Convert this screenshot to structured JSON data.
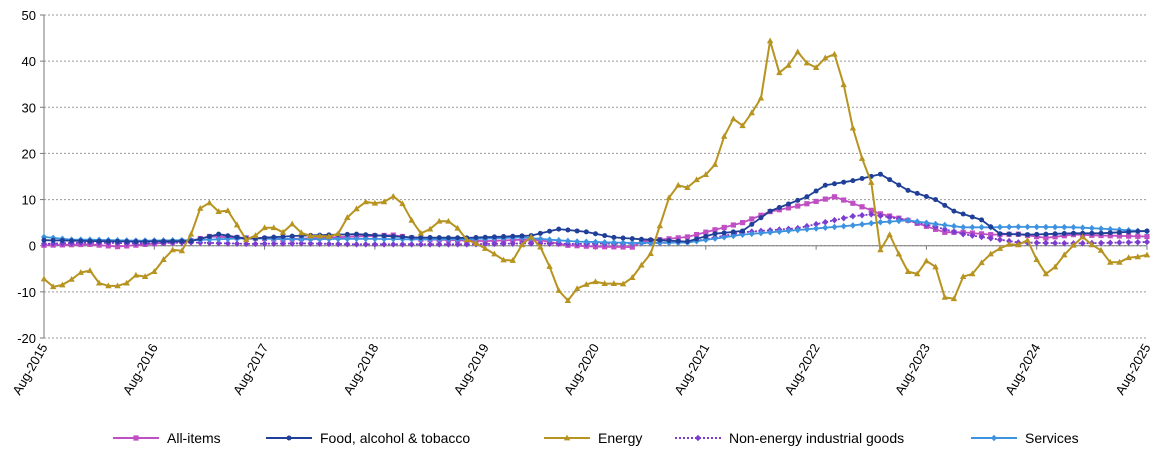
{
  "chart_data": {
    "type": "line",
    "title": "",
    "xlabel": "",
    "ylabel": "",
    "ylim": [
      -20,
      50
    ],
    "yticks": [
      -20,
      -10,
      0,
      10,
      20,
      30,
      40,
      50
    ],
    "x_start": "Aug-2015",
    "x_end": "Aug-2025",
    "xticks": [
      "Aug-2015",
      "Aug-2016",
      "Aug-2017",
      "Aug-2018",
      "Aug-2019",
      "Aug-2020",
      "Aug-2021",
      "Aug-2022",
      "Aug-2023",
      "Aug-2024",
      "Aug-2025"
    ],
    "grid": "horizontal dashed",
    "legend_position": "bottom",
    "series": [
      {
        "name": "All-items",
        "color": "#c04fc4",
        "marker": "square",
        "style": "solid",
        "keypoints": [
          [
            "Aug-2015",
            0.1
          ],
          [
            "Jan-2016",
            0.3
          ],
          [
            "Apr-2016",
            -0.2
          ],
          [
            "Dec-2016",
            1.1
          ],
          [
            "Feb-2017",
            2.0
          ],
          [
            "Oct-2017",
            1.4
          ],
          [
            "Jun-2018",
            2.0
          ],
          [
            "Oct-2018",
            2.3
          ],
          [
            "Jan-2019",
            1.4
          ],
          [
            "Aug-2019",
            1.0
          ],
          [
            "Dec-2019",
            1.3
          ],
          [
            "Feb-2020",
            1.2
          ],
          [
            "May-2020",
            0.1
          ],
          [
            "Aug-2020",
            -0.2
          ],
          [
            "Dec-2020",
            -0.3
          ],
          [
            "Jan-2021",
            0.9
          ],
          [
            "Jun-2021",
            1.9
          ],
          [
            "Dec-2021",
            5.0
          ],
          [
            "Mar-2022",
            7.4
          ],
          [
            "Jun-2022",
            8.6
          ],
          [
            "Oct-2022",
            10.6
          ],
          [
            "Dec-2022",
            9.2
          ],
          [
            "Mar-2023",
            6.9
          ],
          [
            "Jun-2023",
            5.5
          ],
          [
            "Oct-2023",
            2.9
          ],
          [
            "Dec-2023",
            2.9
          ],
          [
            "Mar-2024",
            2.4
          ],
          [
            "Jun-2024",
            2.5
          ],
          [
            "Sep-2024",
            1.7
          ],
          [
            "Dec-2024",
            2.4
          ],
          [
            "Mar-2025",
            2.2
          ],
          [
            "Aug-2025",
            2.0
          ]
        ]
      },
      {
        "name": "Food, alcohol & tobacco",
        "color": "#1f3f98",
        "marker": "circle",
        "style": "solid",
        "keypoints": [
          [
            "Aug-2015",
            1.2
          ],
          [
            "Jan-2016",
            1.0
          ],
          [
            "Jun-2016",
            0.9
          ],
          [
            "Dec-2016",
            1.0
          ],
          [
            "Mar-2017",
            2.5
          ],
          [
            "Jun-2017",
            1.5
          ],
          [
            "Dec-2017",
            2.2
          ],
          [
            "Jun-2018",
            2.5
          ],
          [
            "Dec-2018",
            1.8
          ],
          [
            "Jun-2019",
            1.7
          ],
          [
            "Jan-2020",
            2.2
          ],
          [
            "Apr-2020",
            3.6
          ],
          [
            "Jul-2020",
            3.0
          ],
          [
            "Oct-2020",
            1.8
          ],
          [
            "Jan-2021",
            1.4
          ],
          [
            "Jun-2021",
            0.9
          ],
          [
            "Sep-2021",
            2.6
          ],
          [
            "Dec-2021",
            3.2
          ],
          [
            "Mar-2022",
            7.5
          ],
          [
            "Jul-2022",
            10.6
          ],
          [
            "Sep-2022",
            13.1
          ],
          [
            "Dec-2022",
            14.1
          ],
          [
            "Mar-2023",
            15.5
          ],
          [
            "Jun-2023",
            12.0
          ],
          [
            "Sep-2023",
            10.0
          ],
          [
            "Nov-2023",
            7.5
          ],
          [
            "Feb-2024",
            5.6
          ],
          [
            "Apr-2024",
            2.6
          ],
          [
            "Jul-2024",
            2.4
          ],
          [
            "Dec-2024",
            2.7
          ],
          [
            "Mar-2025",
            2.7
          ],
          [
            "Aug-2025",
            3.2
          ]
        ]
      },
      {
        "name": "Energy",
        "color": "#b79420",
        "marker": "triangle",
        "style": "solid",
        "keypoints": [
          [
            "Aug-2015",
            -7.2
          ],
          [
            "Sep-2015",
            -8.9
          ],
          [
            "Oct-2015",
            -8.5
          ],
          [
            "Nov-2015",
            -7.3
          ],
          [
            "Dec-2015",
            -5.8
          ],
          [
            "Jan-2016",
            -5.4
          ],
          [
            "Feb-2016",
            -8.1
          ],
          [
            "Mar-2016",
            -8.7
          ],
          [
            "Apr-2016",
            -8.7
          ],
          [
            "May-2016",
            -8.1
          ],
          [
            "Jun-2016",
            -6.4
          ],
          [
            "Jul-2016",
            -6.7
          ],
          [
            "Aug-2016",
            -5.6
          ],
          [
            "Sep-2016",
            -3.0
          ],
          [
            "Oct-2016",
            -0.9
          ],
          [
            "Nov-2016",
            -1.1
          ],
          [
            "Dec-2016",
            2.5
          ],
          [
            "Jan-2017",
            8.1
          ],
          [
            "Feb-2017",
            9.3
          ],
          [
            "Mar-2017",
            7.4
          ],
          [
            "Apr-2017",
            7.6
          ],
          [
            "May-2017",
            4.5
          ],
          [
            "Jun-2017",
            1.3
          ],
          [
            "Jul-2017",
            2.2
          ],
          [
            "Aug-2017",
            3.9
          ],
          [
            "Sep-2017",
            3.9
          ],
          [
            "Oct-2017",
            2.9
          ],
          [
            "Nov-2017",
            4.7
          ],
          [
            "Dec-2017",
            2.8
          ],
          [
            "Jan-2018",
            2.1
          ],
          [
            "Feb-2018",
            2.1
          ],
          [
            "Mar-2018",
            2.0
          ],
          [
            "Apr-2018",
            2.6
          ],
          [
            "May-2018",
            6.1
          ],
          [
            "Jun-2018",
            8.0
          ],
          [
            "Jul-2018",
            9.5
          ],
          [
            "Aug-2018",
            9.2
          ],
          [
            "Sep-2018",
            9.5
          ],
          [
            "Oct-2018",
            10.7
          ],
          [
            "Nov-2018",
            9.1
          ],
          [
            "Dec-2018",
            5.5
          ],
          [
            "Jan-2019",
            2.7
          ],
          [
            "Feb-2019",
            3.6
          ],
          [
            "Mar-2019",
            5.3
          ],
          [
            "Apr-2019",
            5.3
          ],
          [
            "May-2019",
            3.8
          ],
          [
            "Jun-2019",
            1.3
          ],
          [
            "Jul-2019",
            0.5
          ],
          [
            "Aug-2019",
            -0.6
          ],
          [
            "Sep-2019",
            -1.8
          ],
          [
            "Oct-2019",
            -3.1
          ],
          [
            "Nov-2019",
            -3.2
          ],
          [
            "Dec-2019",
            0.2
          ],
          [
            "Jan-2020",
            1.9
          ],
          [
            "Feb-2020",
            -0.3
          ],
          [
            "Mar-2020",
            -4.5
          ],
          [
            "Apr-2020",
            -9.7
          ],
          [
            "May-2020",
            -11.9
          ],
          [
            "Jun-2020",
            -9.3
          ],
          [
            "Jul-2020",
            -8.4
          ],
          [
            "Aug-2020",
            -7.8
          ],
          [
            "Sep-2020",
            -8.2
          ],
          [
            "Oct-2020",
            -8.2
          ],
          [
            "Nov-2020",
            -8.3
          ],
          [
            "Dec-2020",
            -6.9
          ],
          [
            "Jan-2021",
            -4.2
          ],
          [
            "Feb-2021",
            -1.7
          ],
          [
            "Mar-2021",
            4.3
          ],
          [
            "Apr-2021",
            10.4
          ],
          [
            "May-2021",
            13.1
          ],
          [
            "Jun-2021",
            12.6
          ],
          [
            "Jul-2021",
            14.3
          ],
          [
            "Aug-2021",
            15.4
          ],
          [
            "Sep-2021",
            17.6
          ],
          [
            "Oct-2021",
            23.7
          ],
          [
            "Nov-2021",
            27.5
          ],
          [
            "Dec-2021",
            26.0
          ],
          [
            "Jan-2022",
            28.8
          ],
          [
            "Feb-2022",
            32.0
          ],
          [
            "Mar-2022",
            44.4
          ],
          [
            "Apr-2022",
            37.5
          ],
          [
            "May-2022",
            39.1
          ],
          [
            "Jun-2022",
            42.0
          ],
          [
            "Jul-2022",
            39.6
          ],
          [
            "Aug-2022",
            38.6
          ],
          [
            "Sep-2022",
            40.7
          ],
          [
            "Oct-2022",
            41.5
          ],
          [
            "Nov-2022",
            34.9
          ],
          [
            "Dec-2022",
            25.5
          ],
          [
            "Jan-2023",
            18.9
          ],
          [
            "Feb-2023",
            13.7
          ],
          [
            "Mar-2023",
            -0.9
          ],
          [
            "Apr-2023",
            2.4
          ],
          [
            "May-2023",
            -1.8
          ],
          [
            "Jun-2023",
            -5.6
          ],
          [
            "Jul-2023",
            -6.1
          ],
          [
            "Aug-2023",
            -3.3
          ],
          [
            "Sep-2023",
            -4.6
          ],
          [
            "Oct-2023",
            -11.2
          ],
          [
            "Nov-2023",
            -11.5
          ],
          [
            "Dec-2023",
            -6.7
          ],
          [
            "Jan-2024",
            -6.1
          ],
          [
            "Feb-2024",
            -3.7
          ],
          [
            "Mar-2024",
            -1.8
          ],
          [
            "Apr-2024",
            -0.6
          ],
          [
            "May-2024",
            0.3
          ],
          [
            "Jun-2024",
            0.2
          ],
          [
            "Jul-2024",
            1.2
          ],
          [
            "Aug-2024",
            -3.0
          ],
          [
            "Sep-2024",
            -6.1
          ],
          [
            "Oct-2024",
            -4.6
          ],
          [
            "Nov-2024",
            -2.0
          ],
          [
            "Dec-2024",
            0.1
          ],
          [
            "Jan-2025",
            1.9
          ],
          [
            "Feb-2025",
            0.2
          ],
          [
            "Mar-2025",
            -1.0
          ],
          [
            "Apr-2025",
            -3.6
          ],
          [
            "May-2025",
            -3.6
          ],
          [
            "Jun-2025",
            -2.6
          ],
          [
            "Jul-2025",
            -2.4
          ],
          [
            "Aug-2025",
            -2.0
          ]
        ]
      },
      {
        "name": "Non-energy industrial goods",
        "color": "#7c3ccf",
        "marker": "diamond",
        "style": "dotted",
        "keypoints": [
          [
            "Aug-2015",
            0.4
          ],
          [
            "Jan-2016",
            0.7
          ],
          [
            "Jun-2016",
            0.5
          ],
          [
            "Dec-2016",
            0.7
          ],
          [
            "Jun-2017",
            0.4
          ],
          [
            "Dec-2017",
            0.5
          ],
          [
            "Jun-2018",
            0.3
          ],
          [
            "Dec-2018",
            0.3
          ],
          [
            "Jun-2019",
            0.3
          ],
          [
            "Dec-2019",
            0.5
          ],
          [
            "Jun-2020",
            0.4
          ],
          [
            "Dec-2020",
            0.5
          ],
          [
            "Jun-2021",
            0.7
          ],
          [
            "Dec-2021",
            2.9
          ],
          [
            "Jun-2022",
            3.8
          ],
          [
            "Dec-2022",
            6.4
          ],
          [
            "Feb-2023",
            6.8
          ],
          [
            "Jun-2023",
            5.5
          ],
          [
            "Sep-2023",
            4.1
          ],
          [
            "Dec-2023",
            2.5
          ],
          [
            "Mar-2024",
            1.6
          ],
          [
            "Jun-2024",
            0.7
          ],
          [
            "Dec-2024",
            0.5
          ],
          [
            "Mar-2025",
            0.6
          ],
          [
            "Aug-2025",
            0.8
          ]
        ]
      },
      {
        "name": "Services",
        "color": "#3e93e0",
        "marker": "diamond",
        "style": "solid",
        "keypoints": [
          [
            "Aug-2015",
            1.9
          ],
          [
            "Nov-2015",
            1.3
          ],
          [
            "Jan-2016",
            1.3
          ],
          [
            "Jun-2016",
            1.1
          ],
          [
            "Dec-2016",
            1.2
          ],
          [
            "Jun-2017",
            1.6
          ],
          [
            "Dec-2017",
            1.4
          ],
          [
            "Jun-2018",
            1.5
          ],
          [
            "Dec-2018",
            1.4
          ],
          [
            "Jun-2019",
            1.4
          ],
          [
            "Dec-2019",
            1.8
          ],
          [
            "Mar-2020",
            1.3
          ],
          [
            "Jun-2020",
            0.9
          ],
          [
            "Dec-2020",
            0.6
          ],
          [
            "Jun-2021",
            0.7
          ],
          [
            "Dec-2021",
            2.4
          ],
          [
            "Jun-2022",
            3.4
          ],
          [
            "Dec-2022",
            4.4
          ],
          [
            "Mar-2023",
            5.1
          ],
          [
            "Jun-2023",
            5.5
          ],
          [
            "Sep-2023",
            4.7
          ],
          [
            "Dec-2023",
            4.0
          ],
          [
            "Mar-2024",
            4.0
          ],
          [
            "Jun-2024",
            4.1
          ],
          [
            "Dec-2024",
            4.0
          ],
          [
            "Mar-2025",
            3.7
          ],
          [
            "Aug-2025",
            3.1
          ]
        ]
      }
    ]
  }
}
